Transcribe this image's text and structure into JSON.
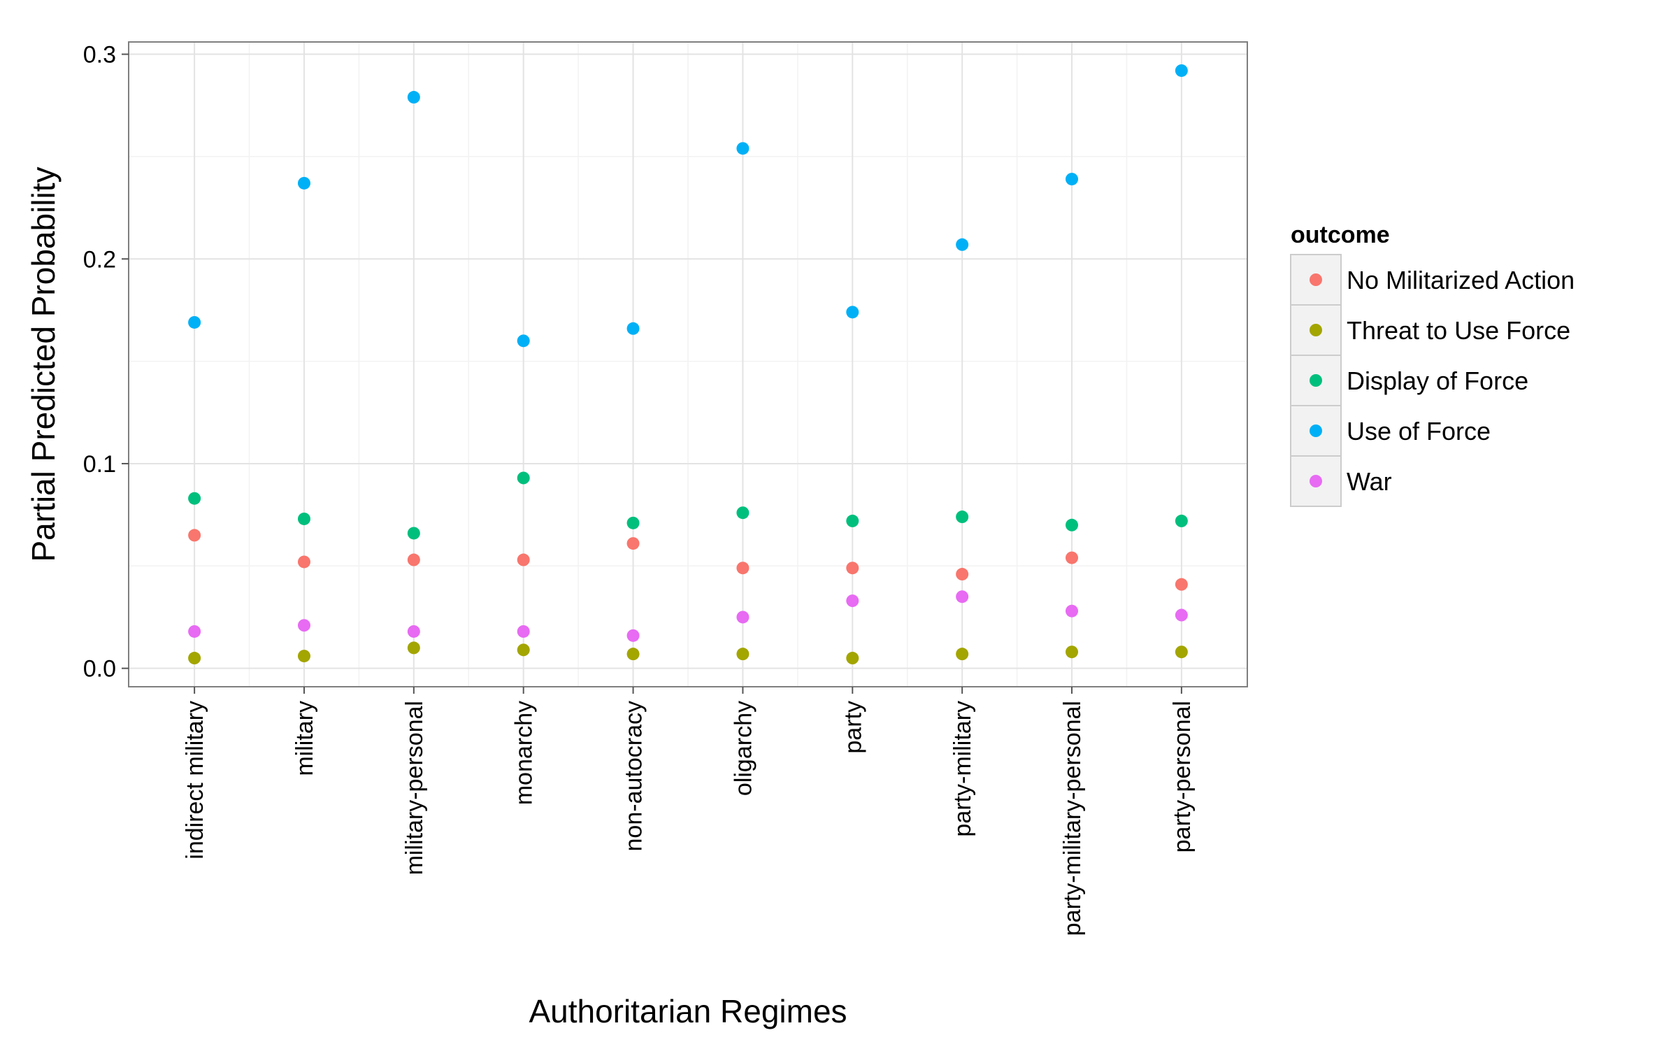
{
  "chart_data": {
    "type": "scatter",
    "xlabel": "Authoritarian Regimes",
    "ylabel": "Partial Predicted Probability",
    "ylim": [
      -0.009,
      0.306
    ],
    "yticks": [
      0.0,
      0.1,
      0.2,
      0.3
    ],
    "ytick_labels": [
      "0.0",
      "0.1",
      "0.2",
      "0.3"
    ],
    "grid": true,
    "legend_position": "right",
    "legend_title": "outcome",
    "categories": [
      "indirect military",
      "military",
      "military-personal",
      "monarchy",
      "non-autocracy",
      "oligarchy",
      "party",
      "party-military",
      "party-military-personal",
      "party-personal"
    ],
    "series": [
      {
        "name": "No Militarized Action",
        "color": "#F8766D",
        "values": [
          0.065,
          0.052,
          0.053,
          0.053,
          0.061,
          0.049,
          0.049,
          0.046,
          0.054,
          0.041
        ]
      },
      {
        "name": "Threat to Use Force",
        "color": "#A3A500",
        "values": [
          0.005,
          0.006,
          0.01,
          0.009,
          0.007,
          0.007,
          0.005,
          0.007,
          0.008,
          0.008
        ]
      },
      {
        "name": "Display of Force",
        "color": "#00BF7D",
        "values": [
          0.083,
          0.073,
          0.066,
          0.093,
          0.071,
          0.076,
          0.072,
          0.074,
          0.07,
          0.072
        ]
      },
      {
        "name": "Use of Force",
        "color": "#00B0F6",
        "values": [
          0.169,
          0.237,
          0.279,
          0.16,
          0.166,
          0.254,
          0.174,
          0.207,
          0.239,
          0.292
        ]
      },
      {
        "name": "War",
        "color": "#E76BF3",
        "values": [
          0.018,
          0.021,
          0.018,
          0.018,
          0.016,
          0.025,
          0.033,
          0.035,
          0.028,
          0.026
        ]
      }
    ]
  }
}
